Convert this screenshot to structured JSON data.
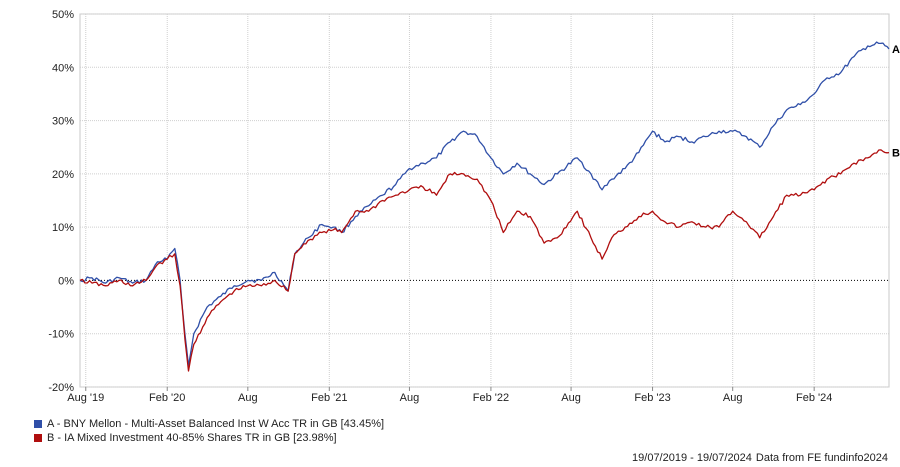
{
  "chart_data": {
    "type": "line",
    "ylim": [
      -20,
      50
    ],
    "y_ticks": [
      "50%",
      "40%",
      "30%",
      "20%",
      "10%",
      "0%",
      "-10%",
      "-20%"
    ],
    "y_tick_values": [
      50,
      40,
      30,
      20,
      10,
      0,
      -10,
      -20
    ],
    "x_ticks": [
      "Aug '19",
      "Feb '20",
      "Aug",
      "Feb '21",
      "Aug",
      "Feb '22",
      "Aug",
      "Feb '23",
      "Aug",
      "Feb '24"
    ],
    "x_tick_dates": [
      "2019-08-01",
      "2020-02-01",
      "2020-08-01",
      "2021-02-01",
      "2021-08-01",
      "2022-02-01",
      "2022-08-01",
      "2023-02-01",
      "2023-08-01",
      "2024-02-01"
    ],
    "x_range": [
      "2019-07-19",
      "2024-07-19"
    ],
    "grid": true,
    "zero_line": "dotted",
    "series": [
      {
        "name": "A - BNY Mellon - Multi-Asset Balanced Inst W Acc TR in GB [43.45%]",
        "end_label": "A",
        "color": "#2f4fa8",
        "points": [
          [
            "2019-07-19",
            0
          ],
          [
            "2019-08-15",
            0.5
          ],
          [
            "2019-09-15",
            -0.5
          ],
          [
            "2019-10-15",
            0.5
          ],
          [
            "2019-11-15",
            -0.5
          ],
          [
            "2019-12-15",
            0
          ],
          [
            "2020-01-10",
            3.5
          ],
          [
            "2020-02-01",
            4
          ],
          [
            "2020-02-18",
            6
          ],
          [
            "2020-03-01",
            0
          ],
          [
            "2020-03-12",
            -10
          ],
          [
            "2020-03-20",
            -16
          ],
          [
            "2020-04-01",
            -10
          ],
          [
            "2020-05-01",
            -5
          ],
          [
            "2020-06-01",
            -3
          ],
          [
            "2020-07-01",
            -1
          ],
          [
            "2020-08-01",
            0
          ],
          [
            "2020-09-01",
            0
          ],
          [
            "2020-10-01",
            1.5
          ],
          [
            "2020-10-31",
            -2
          ],
          [
            "2020-11-15",
            5
          ],
          [
            "2020-12-15",
            8
          ],
          [
            "2021-01-15",
            10.5
          ],
          [
            "2021-02-10",
            10
          ],
          [
            "2021-03-01",
            9
          ],
          [
            "2021-04-01",
            12
          ],
          [
            "2021-05-01",
            14
          ],
          [
            "2021-06-01",
            16
          ],
          [
            "2021-07-01",
            18
          ],
          [
            "2021-08-01",
            21
          ],
          [
            "2021-09-01",
            22
          ],
          [
            "2021-10-01",
            23
          ],
          [
            "2021-11-01",
            26
          ],
          [
            "2021-12-01",
            28
          ],
          [
            "2022-01-01",
            27
          ],
          [
            "2022-02-01",
            23
          ],
          [
            "2022-03-01",
            20
          ],
          [
            "2022-04-01",
            22
          ],
          [
            "2022-05-01",
            20
          ],
          [
            "2022-06-01",
            18
          ],
          [
            "2022-07-01",
            20
          ],
          [
            "2022-08-15",
            23
          ],
          [
            "2022-09-15",
            20
          ],
          [
            "2022-10-10",
            17
          ],
          [
            "2022-11-01",
            19
          ],
          [
            "2022-12-01",
            21
          ],
          [
            "2023-01-01",
            24
          ],
          [
            "2023-02-01",
            28
          ],
          [
            "2023-03-01",
            26
          ],
          [
            "2023-04-01",
            27
          ],
          [
            "2023-05-01",
            26
          ],
          [
            "2023-06-01",
            27
          ],
          [
            "2023-07-01",
            28
          ],
          [
            "2023-08-01",
            28
          ],
          [
            "2023-09-01",
            27
          ],
          [
            "2023-10-01",
            25
          ],
          [
            "2023-11-01",
            29
          ],
          [
            "2023-12-01",
            32
          ],
          [
            "2024-01-01",
            33
          ],
          [
            "2024-02-01",
            35
          ],
          [
            "2024-03-01",
            38
          ],
          [
            "2024-04-01",
            39
          ],
          [
            "2024-05-01",
            42
          ],
          [
            "2024-06-01",
            44
          ],
          [
            "2024-07-01",
            44.5
          ],
          [
            "2024-07-19",
            43.45
          ]
        ]
      },
      {
        "name": "B - IA Mixed Investment 40-85% Shares TR in GB [23.98%]",
        "end_label": "B",
        "color": "#b00e0e",
        "points": [
          [
            "2019-07-19",
            0
          ],
          [
            "2019-08-15",
            -0.5
          ],
          [
            "2019-09-15",
            -1
          ],
          [
            "2019-10-15",
            0
          ],
          [
            "2019-11-15",
            -1
          ],
          [
            "2019-12-15",
            0
          ],
          [
            "2020-01-10",
            3
          ],
          [
            "2020-02-01",
            4
          ],
          [
            "2020-02-18",
            5
          ],
          [
            "2020-03-01",
            -1
          ],
          [
            "2020-03-12",
            -11
          ],
          [
            "2020-03-20",
            -17
          ],
          [
            "2020-04-01",
            -12
          ],
          [
            "2020-05-01",
            -7
          ],
          [
            "2020-06-01",
            -4
          ],
          [
            "2020-07-01",
            -2
          ],
          [
            "2020-08-01",
            -1
          ],
          [
            "2020-09-01",
            -1
          ],
          [
            "2020-10-01",
            0
          ],
          [
            "2020-10-31",
            -2
          ],
          [
            "2020-11-15",
            5
          ],
          [
            "2020-12-15",
            7.5
          ],
          [
            "2021-01-15",
            9
          ],
          [
            "2021-02-10",
            9.5
          ],
          [
            "2021-03-01",
            9
          ],
          [
            "2021-04-01",
            13
          ],
          [
            "2021-05-01",
            13
          ],
          [
            "2021-06-01",
            15
          ],
          [
            "2021-07-01",
            16
          ],
          [
            "2021-08-01",
            17
          ],
          [
            "2021-09-01",
            17.5
          ],
          [
            "2021-10-01",
            16
          ],
          [
            "2021-11-01",
            20
          ],
          [
            "2021-12-01",
            20
          ],
          [
            "2022-01-01",
            19
          ],
          [
            "2022-02-01",
            15
          ],
          [
            "2022-03-01",
            9
          ],
          [
            "2022-04-01",
            13
          ],
          [
            "2022-05-01",
            12
          ],
          [
            "2022-06-01",
            7
          ],
          [
            "2022-07-01",
            8
          ],
          [
            "2022-08-15",
            13
          ],
          [
            "2022-09-15",
            8
          ],
          [
            "2022-10-10",
            4
          ],
          [
            "2022-11-01",
            8
          ],
          [
            "2022-12-01",
            10
          ],
          [
            "2023-01-01",
            12
          ],
          [
            "2023-02-01",
            13
          ],
          [
            "2023-03-01",
            11
          ],
          [
            "2023-04-01",
            10
          ],
          [
            "2023-05-01",
            11
          ],
          [
            "2023-06-01",
            10
          ],
          [
            "2023-07-01",
            10
          ],
          [
            "2023-08-01",
            13
          ],
          [
            "2023-09-01",
            11
          ],
          [
            "2023-10-01",
            8
          ],
          [
            "2023-11-01",
            12
          ],
          [
            "2023-12-01",
            16
          ],
          [
            "2024-01-01",
            16
          ],
          [
            "2024-02-01",
            17
          ],
          [
            "2024-03-01",
            19
          ],
          [
            "2024-04-01",
            20
          ],
          [
            "2024-05-01",
            22
          ],
          [
            "2024-06-01",
            23
          ],
          [
            "2024-07-01",
            24.5
          ],
          [
            "2024-07-19",
            23.98
          ]
        ]
      }
    ]
  },
  "legend": [
    {
      "label": "A - BNY Mellon - Multi-Asset Balanced Inst W Acc TR in GB [43.45%]",
      "color": "#2f4fa8"
    },
    {
      "label": "B - IA Mixed Investment 40-85% Shares TR in GB [23.98%]",
      "color": "#b00e0e"
    }
  ],
  "footer": {
    "date_range": "19/07/2019 - 19/07/2024",
    "source": "Data from FE fundinfo2024"
  }
}
